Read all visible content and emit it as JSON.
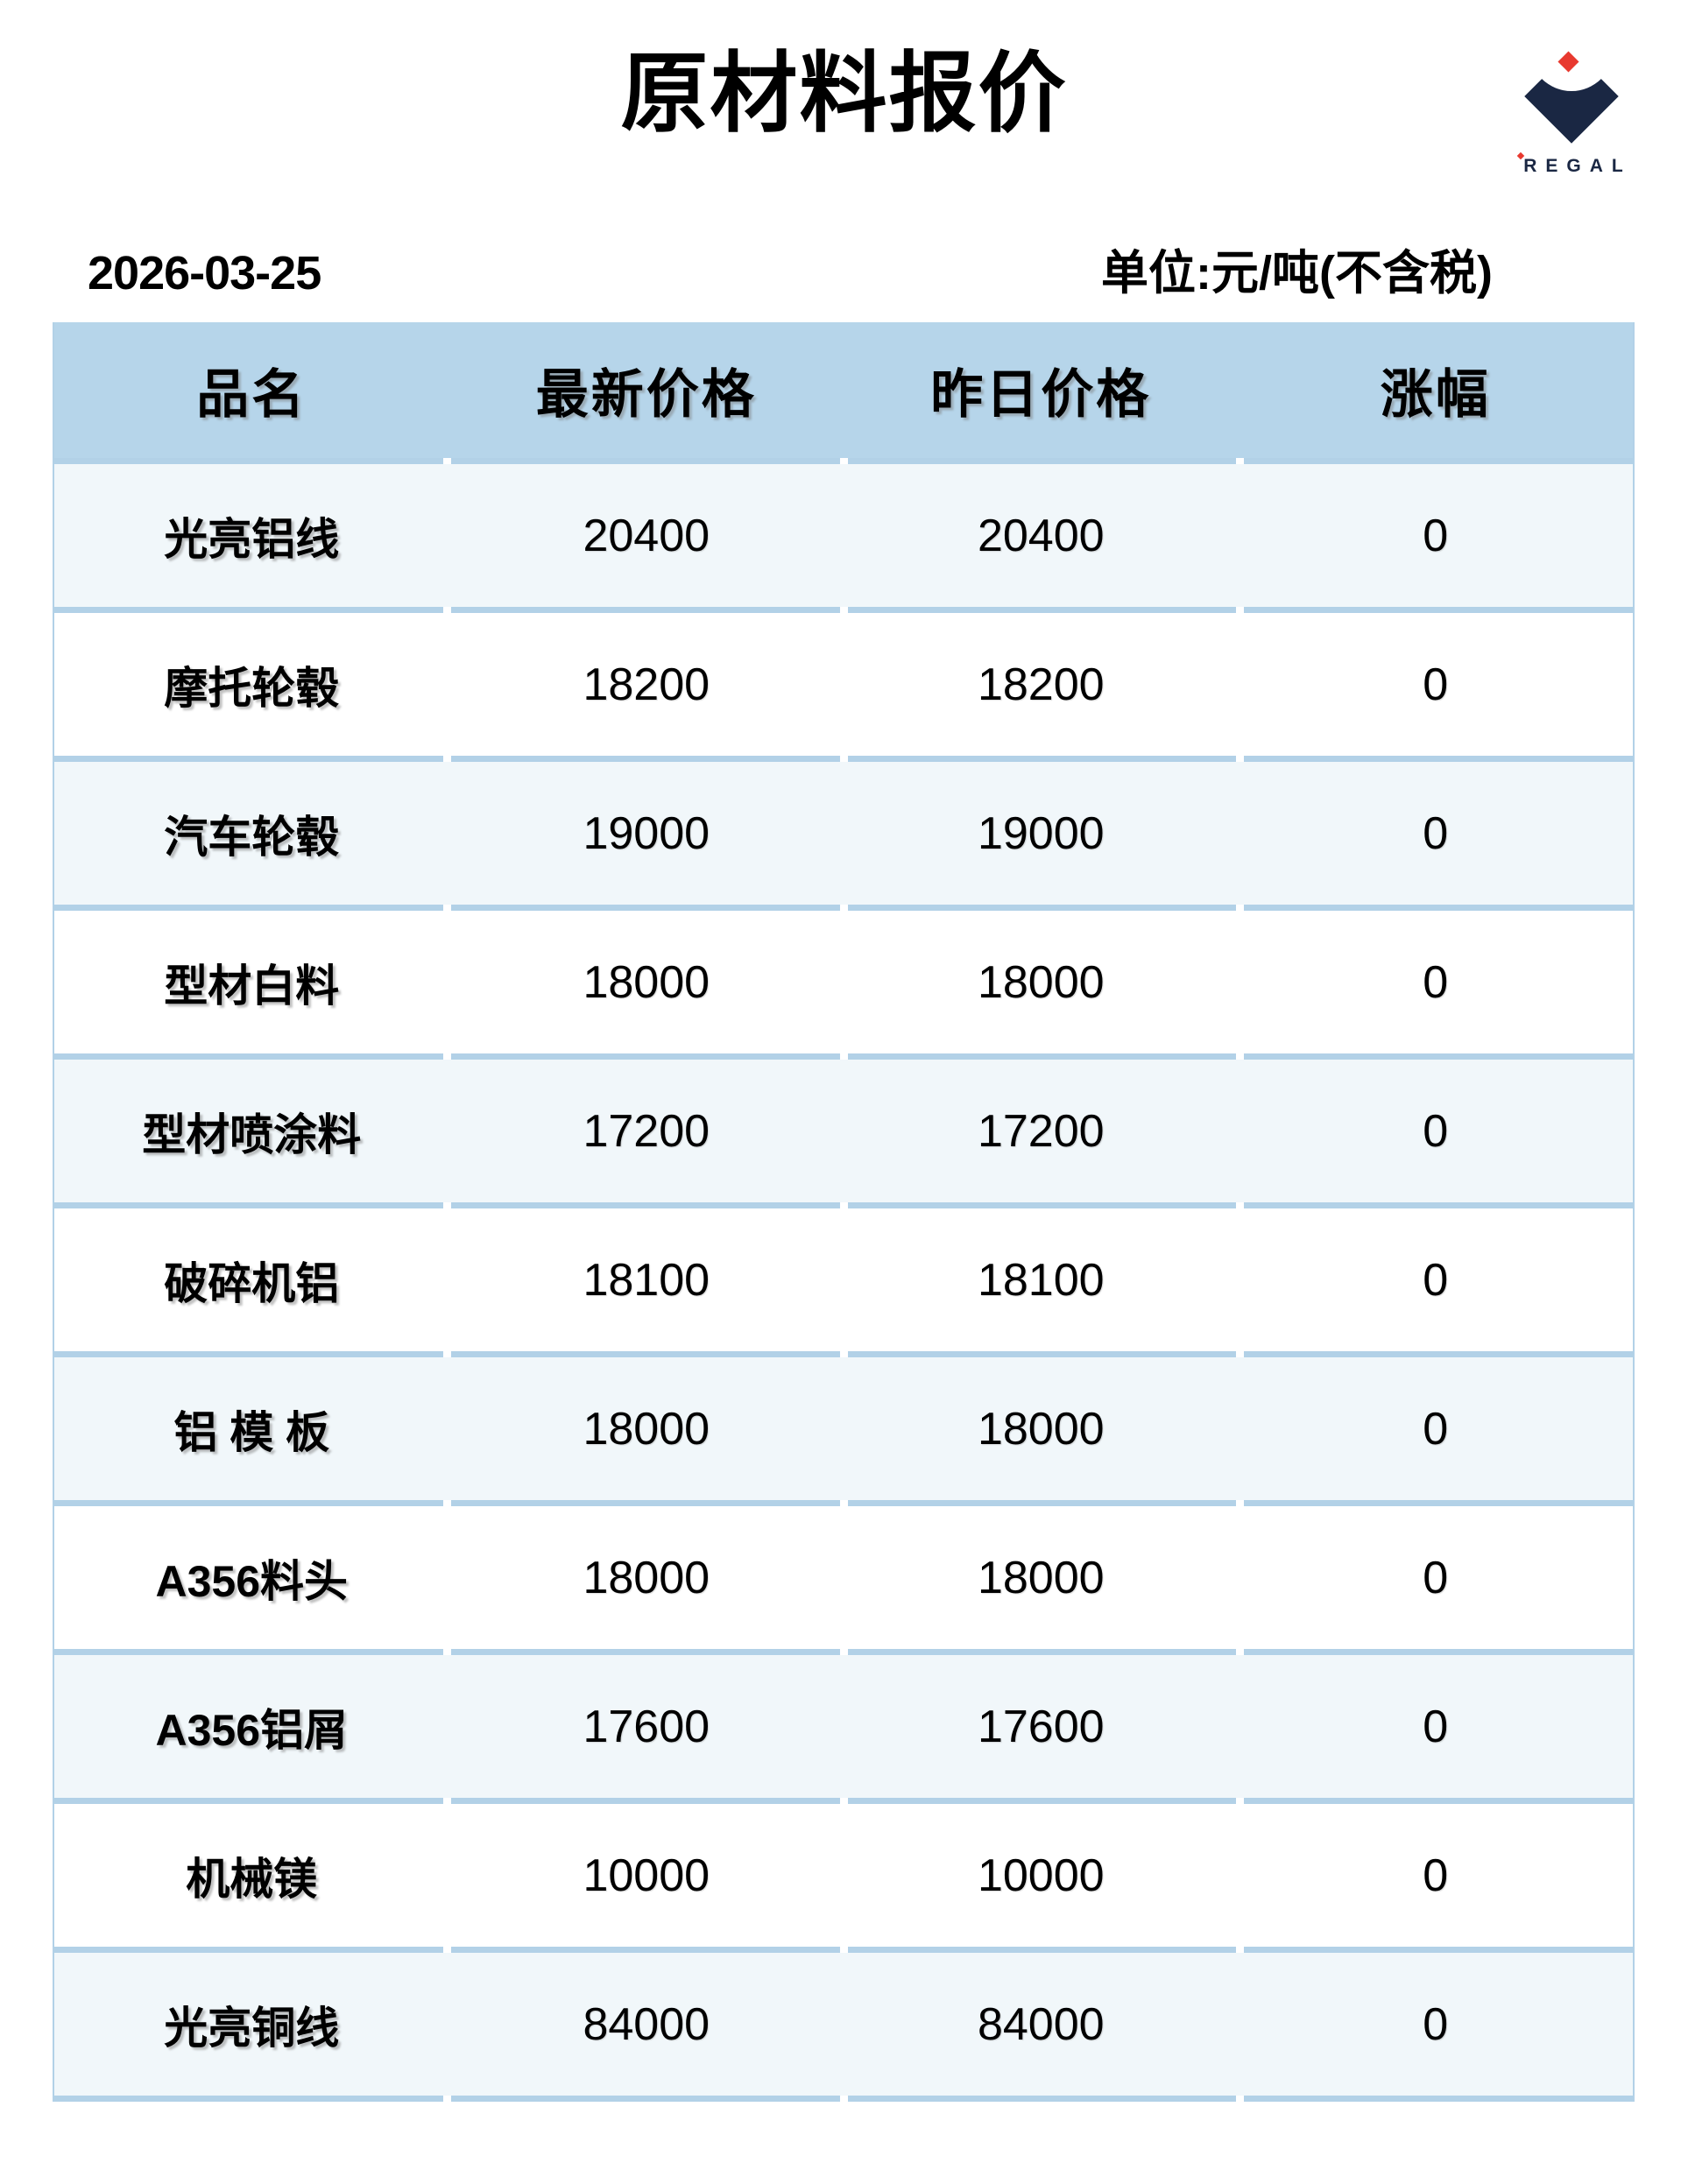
{
  "page": {
    "title": "原材料报价",
    "date": "2026-03-25",
    "unit_note": "单位:元/吨(不含税)"
  },
  "logo": {
    "text": "REGAL"
  },
  "colors": {
    "header-bg": "#b6d5ea",
    "border": "#b2d1e7",
    "row-alt": "#f1f7fa",
    "row-bg": "#ffffff",
    "navy": "#1a2743",
    "red": "#e8392f"
  },
  "table": {
    "headers": [
      "品名",
      "最新价格",
      "昨日价格",
      "涨幅"
    ],
    "rows": [
      {
        "name": "光亮铝线",
        "latest": "20400",
        "yesterday": "20400",
        "change": "0"
      },
      {
        "name": "摩托轮毂",
        "latest": "18200",
        "yesterday": "18200",
        "change": "0"
      },
      {
        "name": "汽车轮毂",
        "latest": "19000",
        "yesterday": "19000",
        "change": "0"
      },
      {
        "name": "型材白料",
        "latest": "18000",
        "yesterday": "18000",
        "change": "0"
      },
      {
        "name": "型材喷涂料",
        "latest": "17200",
        "yesterday": "17200",
        "change": "0"
      },
      {
        "name": "破碎机铝",
        "latest": "18100",
        "yesterday": "18100",
        "change": "0"
      },
      {
        "name": "铝 模 板",
        "latest": "18000",
        "yesterday": "18000",
        "change": "0"
      },
      {
        "name": "A356料头",
        "latest": "18000",
        "yesterday": "18000",
        "change": "0"
      },
      {
        "name": "A356铝屑",
        "latest": "17600",
        "yesterday": "17600",
        "change": "0"
      },
      {
        "name": "机械镁",
        "latest": "10000",
        "yesterday": "10000",
        "change": "0"
      },
      {
        "name": "光亮铜线",
        "latest": "84000",
        "yesterday": "84000",
        "change": "0"
      }
    ]
  }
}
